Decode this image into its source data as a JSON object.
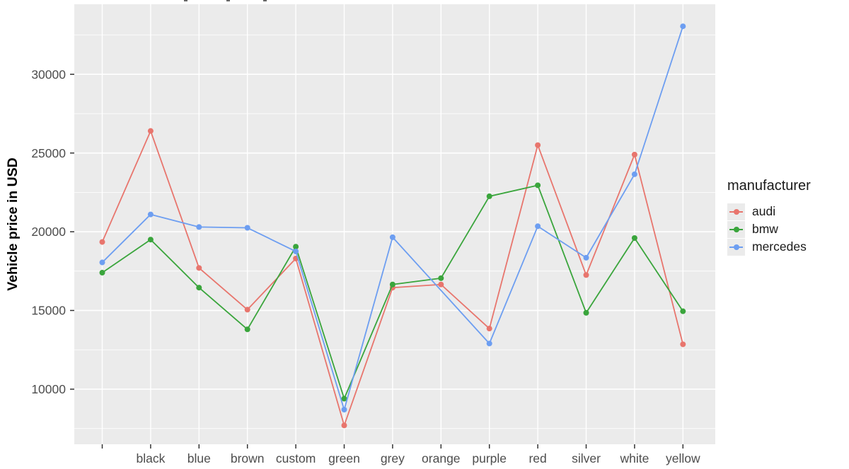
{
  "chart_data": {
    "type": "line",
    "ylabel": "Vehicle price in USD",
    "xlabel": "",
    "categories": [
      "",
      "black",
      "blue",
      "brown",
      "custom",
      "green",
      "grey",
      "orange",
      "purple",
      "red",
      "silver",
      "white",
      "yellow"
    ],
    "series": [
      {
        "name": "audi",
        "color": "#e8756d",
        "values": [
          19350,
          26400,
          17700,
          15050,
          18300,
          7700,
          16450,
          16650,
          13850,
          25500,
          17250,
          24900,
          12850
        ]
      },
      {
        "name": "bmw",
        "color": "#3aa53c",
        "values": [
          17400,
          19500,
          16450,
          13800,
          19050,
          9400,
          16650,
          17050,
          22250,
          22950,
          14850,
          19600,
          14950
        ]
      },
      {
        "name": "mercedes",
        "color": "#6d9ef1",
        "values": [
          18050,
          21100,
          20300,
          20250,
          18750,
          8700,
          19650,
          null,
          12900,
          20350,
          18350,
          23650,
          33050
        ]
      }
    ],
    "yticks": [
      10000,
      15000,
      20000,
      25000,
      30000
    ],
    "yticks_minor": [
      7500,
      12500,
      17500,
      22500,
      27500,
      32500
    ],
    "ylim": [
      6500,
      34450
    ],
    "legend_title": "manufacturer",
    "legend_position": "right",
    "grid": "on",
    "panel_bg": "#ebebeb",
    "grid_color": "#ffffff",
    "tick_label_color": "#4d4d4d",
    "axis_title_color": "#000000"
  }
}
